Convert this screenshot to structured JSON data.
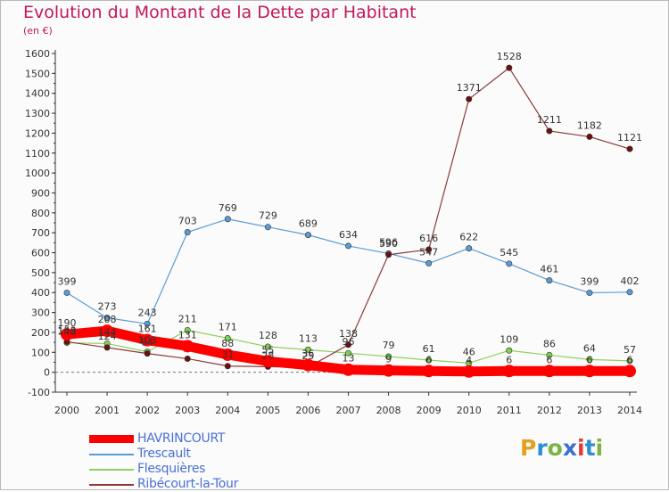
{
  "title": "Evolution du Montant de la Dette par Habitant",
  "subtitle": "(en €)",
  "logo": {
    "text": "Proxiti",
    "letters": [
      "P",
      "r",
      "o",
      "x",
      "i",
      "t",
      "i"
    ],
    "colors": [
      "#e2a11c",
      "#2e8fcf",
      "#7cb342",
      "#3a6fd0",
      "#e53935",
      "#2e8fcf",
      "#7cb342"
    ]
  },
  "chart_data": {
    "type": "line",
    "x": [
      2000,
      2001,
      2002,
      2003,
      2004,
      2005,
      2006,
      2007,
      2008,
      2009,
      2010,
      2011,
      2012,
      2013,
      2014
    ],
    "x_tick_labels": [
      "2000",
      "2001",
      "2002",
      "2003",
      "2004",
      "2005",
      "2006",
      "2007",
      "2008",
      "2009",
      "2010",
      "2011",
      "2012",
      "2013",
      "2014"
    ],
    "ylim": [
      -100,
      1600
    ],
    "y_ticks": [
      -100,
      0,
      100,
      200,
      300,
      400,
      500,
      600,
      700,
      800,
      900,
      1000,
      1100,
      1200,
      1300,
      1400,
      1500,
      1600
    ],
    "y_tick_labels": [
      "-100",
      "0",
      "100",
      "200",
      "300",
      "400",
      "500",
      "600",
      "700",
      "800",
      "900",
      "1000",
      "1100",
      "1200",
      "1300",
      "1400",
      "1500",
      "1600"
    ],
    "grid": false,
    "legend": "bottom-left",
    "series": [
      {
        "name": "HAVRINCOURT",
        "color": "#ff0000",
        "marker_color": "#ff0000",
        "thick": true,
        "values": [
          190,
          208,
          161,
          131,
          88,
          55,
          36,
          13,
          9,
          6,
          4,
          6,
          6,
          6,
          6
        ],
        "labels": [
          "190",
          "208",
          "161",
          "131",
          "88",
          "55",
          "36",
          "13",
          "9",
          "6",
          "4",
          "6",
          "6",
          "6",
          "6"
        ]
      },
      {
        "name": "Trescault",
        "color": "#5b9bd5",
        "marker_color": "#5b9bd5",
        "thick": false,
        "values": [
          399,
          273,
          243,
          703,
          769,
          729,
          689,
          634,
          596,
          547,
          622,
          545,
          461,
          399,
          402
        ],
        "labels": [
          "399",
          "273",
          "243",
          "703",
          "769",
          "729",
          "689",
          "634",
          "596",
          "547",
          "622",
          "545",
          "461",
          "399",
          "402"
        ]
      },
      {
        "name": "Flesquières",
        "color": "#90d060",
        "marker_color": "#7ed148",
        "thick": false,
        "values": [
          148,
          144,
          103,
          211,
          171,
          128,
          113,
          96,
          79,
          61,
          46,
          109,
          86,
          64,
          57
        ],
        "labels": [
          "148",
          "144",
          "103",
          "211",
          "171",
          "128",
          "113",
          "96",
          "79",
          "61",
          "46",
          "109",
          "86",
          "64",
          "57"
        ]
      },
      {
        "name": "Ribécourt-la-Tour",
        "color": "#8b3a3a",
        "marker_color": "#6b0f0f",
        "thick": false,
        "values": [
          153,
          124,
          94,
          68,
          31,
          28,
          25,
          138,
          590,
          616,
          1371,
          1528,
          1211,
          1182,
          1121
        ],
        "labels": [
          "153",
          "124",
          "94",
          "",
          "31",
          "28",
          "25",
          "138",
          "590",
          "616",
          "1371",
          "1528",
          "1211",
          "1182",
          "1121"
        ]
      }
    ]
  }
}
